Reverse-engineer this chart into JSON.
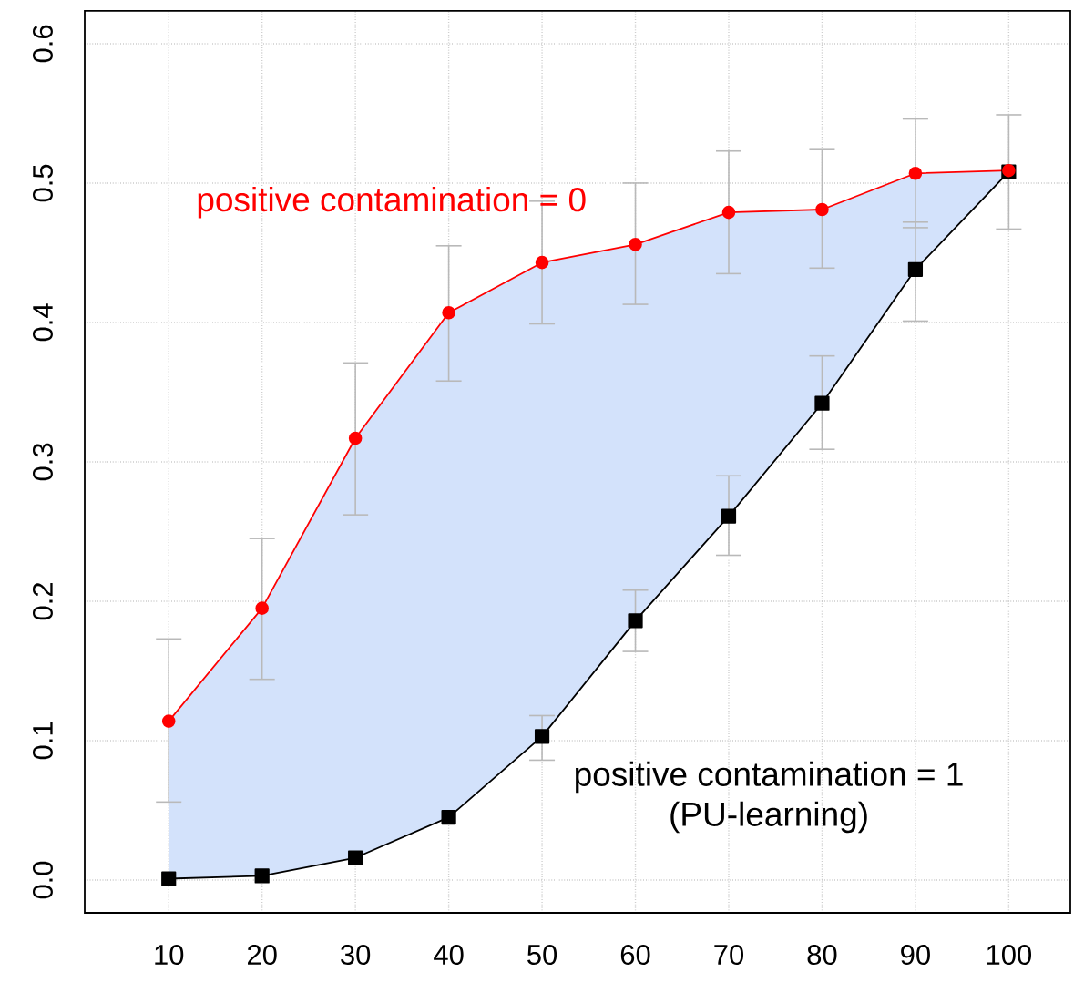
{
  "chart_data": {
    "type": "line",
    "x": [
      10,
      20,
      30,
      40,
      50,
      60,
      70,
      80,
      90,
      100
    ],
    "xlim": [
      1,
      106.6
    ],
    "xticks": [
      10,
      20,
      30,
      40,
      50,
      60,
      70,
      80,
      90,
      100
    ],
    "ylim": [
      -0.0235,
      0.6235
    ],
    "yticks": [
      {
        "value": 0,
        "label": "0.0"
      },
      0.1,
      0.2,
      0.3,
      0.4,
      0.5,
      0.6
    ],
    "grid": true,
    "series": [
      {
        "name": "positive contamination = 0",
        "color": "#ff0000",
        "marker": "circle",
        "values": [
          0.114,
          0.195,
          0.317,
          0.407,
          0.443,
          0.456,
          0.479,
          0.481,
          0.507,
          0.509
        ],
        "errors": [
          [
            0.056,
            0.173
          ],
          [
            0.144,
            0.245
          ],
          [
            0.262,
            0.371
          ],
          [
            0.358,
            0.455
          ],
          [
            0.399,
            0.487
          ],
          [
            0.413,
            0.5
          ],
          [
            0.435,
            0.523
          ],
          [
            0.439,
            0.524
          ],
          [
            0.468,
            0.546
          ],
          [
            0.467,
            0.549
          ]
        ],
        "lower": [
          0.001,
          0.003,
          0.016,
          0.045,
          0.103,
          0.186,
          0.261,
          0.342,
          0.438,
          0.508
        ],
        "upper": [
          0.114,
          0.195,
          0.317,
          0.407,
          0.443,
          0.456,
          0.479,
          0.481,
          0.507,
          0.509
        ]
      },
      {
        "name": "positive contamination = 1 (PU-learning)",
        "color": "#000000",
        "marker": "square",
        "values": [
          0.001,
          0.003,
          0.016,
          0.045,
          0.103,
          0.186,
          0.261,
          0.342,
          0.438,
          0.508
        ],
        "errors": [
          null,
          null,
          null,
          null,
          [
            0.086,
            0.118
          ],
          [
            0.164,
            0.208
          ],
          [
            0.233,
            0.29
          ],
          [
            0.309,
            0.376
          ],
          [
            0.401,
            0.472
          ],
          null
        ]
      }
    ]
  }
}
